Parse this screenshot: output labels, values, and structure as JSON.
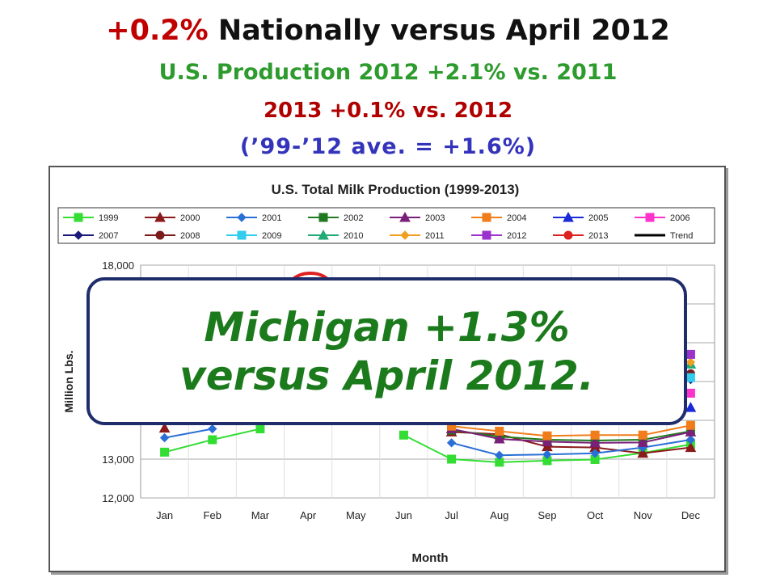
{
  "headline": {
    "line1_pct": "+0.2%",
    "line1_rest": "Nationally versus April 2012",
    "line2": "U.S. Production 2012 +2.1% vs. 2011",
    "line3": "2013 +0.1% vs. 2012",
    "line4": "(’99-’12 ave. = +1.6%)"
  },
  "callout": {
    "line1": "Michigan +1.3%",
    "line2": "versus April 2012."
  },
  "chart_data": {
    "type": "line",
    "title": "U.S. Total Milk Production (1999-2013)",
    "xlabel": "Month",
    "ylabel": "Million Lbs.",
    "categories": [
      "Jan",
      "Feb",
      "Mar",
      "Apr",
      "May",
      "Jun",
      "Jul",
      "Aug",
      "Sep",
      "Oct",
      "Nov",
      "Dec"
    ],
    "y_ticks": [
      "12,000",
      "13,000",
      "18,000"
    ],
    "y_tick_values": [
      12000,
      13000,
      18000
    ],
    "ylim": [
      12000,
      18000
    ],
    "grid": true,
    "legend_position": "top",
    "series": [
      {
        "name": "1999",
        "color": "#33dd33",
        "marker": "square",
        "values": [
          13180,
          13500,
          13780,
          null,
          null,
          13620,
          13000,
          12920,
          12960,
          12990,
          13160,
          13380
        ]
      },
      {
        "name": "2000",
        "color": "#8b1a1a",
        "marker": "triangle",
        "values": [
          13800,
          null,
          null,
          null,
          null,
          null,
          13700,
          13640,
          13320,
          13300,
          13150,
          13300
        ]
      },
      {
        "name": "2001",
        "color": "#2a6fd6",
        "marker": "diamond",
        "values": [
          13550,
          13780,
          null,
          null,
          null,
          null,
          13420,
          13100,
          13120,
          13150,
          13300,
          13500
        ]
      },
      {
        "name": "2002",
        "color": "#1e7a1e",
        "marker": "square",
        "values": [
          null,
          null,
          null,
          null,
          null,
          null,
          13750,
          13580,
          13500,
          13480,
          13500,
          13720
        ]
      },
      {
        "name": "2003",
        "color": "#7a1f7a",
        "marker": "triangle",
        "values": [
          null,
          null,
          null,
          null,
          null,
          null,
          13780,
          13520,
          13450,
          13420,
          13430,
          13700
        ]
      },
      {
        "name": "2004",
        "color": "#f07d1a",
        "marker": "square",
        "values": [
          null,
          null,
          null,
          null,
          null,
          null,
          13850,
          13720,
          13600,
          13620,
          13620,
          13870
        ]
      },
      {
        "name": "2005",
        "color": "#1a2ad6",
        "marker": "triangle",
        "values": [
          null,
          null,
          null,
          null,
          null,
          null,
          null,
          null,
          null,
          null,
          null,
          14330
        ]
      },
      {
        "name": "2006",
        "color": "#ff33cc",
        "marker": "square",
        "values": [
          null,
          null,
          null,
          null,
          null,
          null,
          null,
          null,
          null,
          null,
          null,
          14700
        ]
      },
      {
        "name": "2007",
        "color": "#1a1a7a",
        "marker": "diamond",
        "values": [
          null,
          null,
          null,
          null,
          null,
          null,
          null,
          null,
          null,
          null,
          null,
          15050
        ]
      },
      {
        "name": "2008",
        "color": "#7a1a1a",
        "marker": "circle",
        "values": [
          null,
          null,
          null,
          null,
          null,
          null,
          null,
          null,
          null,
          null,
          null,
          15200
        ]
      },
      {
        "name": "2009",
        "color": "#33ccee",
        "marker": "square",
        "values": [
          null,
          null,
          null,
          null,
          null,
          null,
          null,
          null,
          null,
          null,
          null,
          15100
        ]
      },
      {
        "name": "2010",
        "color": "#22aa77",
        "marker": "triangle",
        "values": [
          null,
          null,
          null,
          null,
          null,
          null,
          null,
          null,
          null,
          null,
          null,
          15450
        ]
      },
      {
        "name": "2011",
        "color": "#f0a020",
        "marker": "diamond",
        "values": [
          null,
          null,
          null,
          null,
          null,
          null,
          null,
          null,
          null,
          null,
          null,
          15500
        ]
      },
      {
        "name": "2012",
        "color": "#9a33cc",
        "marker": "square",
        "values": [
          null,
          null,
          null,
          null,
          null,
          null,
          null,
          null,
          null,
          null,
          null,
          15700
        ]
      },
      {
        "name": "2013",
        "color": "#dd2222",
        "marker": "circle",
        "values": [
          null,
          null,
          null,
          null,
          null,
          null,
          null,
          null,
          null,
          null,
          null,
          null
        ]
      },
      {
        "name": "Trend",
        "color": "#000000",
        "marker": "none",
        "values": [
          null,
          null,
          null,
          null,
          null,
          null,
          null,
          null,
          null,
          null,
          null,
          null
        ]
      }
    ]
  }
}
